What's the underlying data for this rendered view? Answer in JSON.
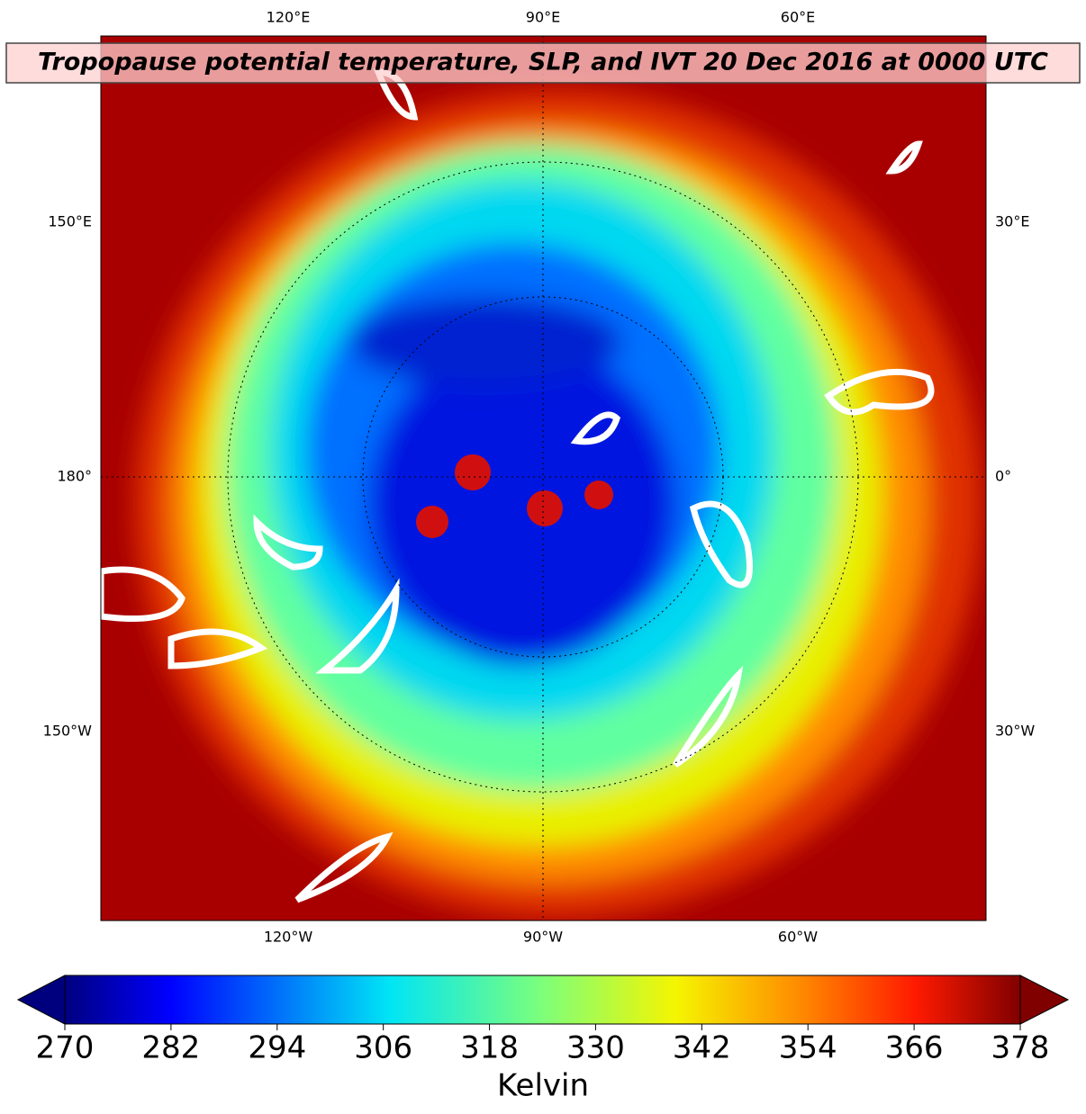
{
  "title": "Tropopause potential temperature, SLP, and IVT 20 Dec 2016 at 0000 UTC",
  "longitude_labels": {
    "top": [
      "120°E",
      "90°E",
      "60°E"
    ],
    "bottom": [
      "120°W",
      "90°W",
      "60°W"
    ],
    "left": [
      "150°E",
      "180°",
      "150°W"
    ],
    "right": [
      "30°E",
      "0°",
      "30°W"
    ]
  },
  "colorbar": {
    "label": "Kelvin",
    "range": [
      270,
      378
    ],
    "ticks": [
      270,
      282,
      294,
      306,
      318,
      330,
      342,
      354,
      366,
      378
    ],
    "extend": "both"
  }
}
